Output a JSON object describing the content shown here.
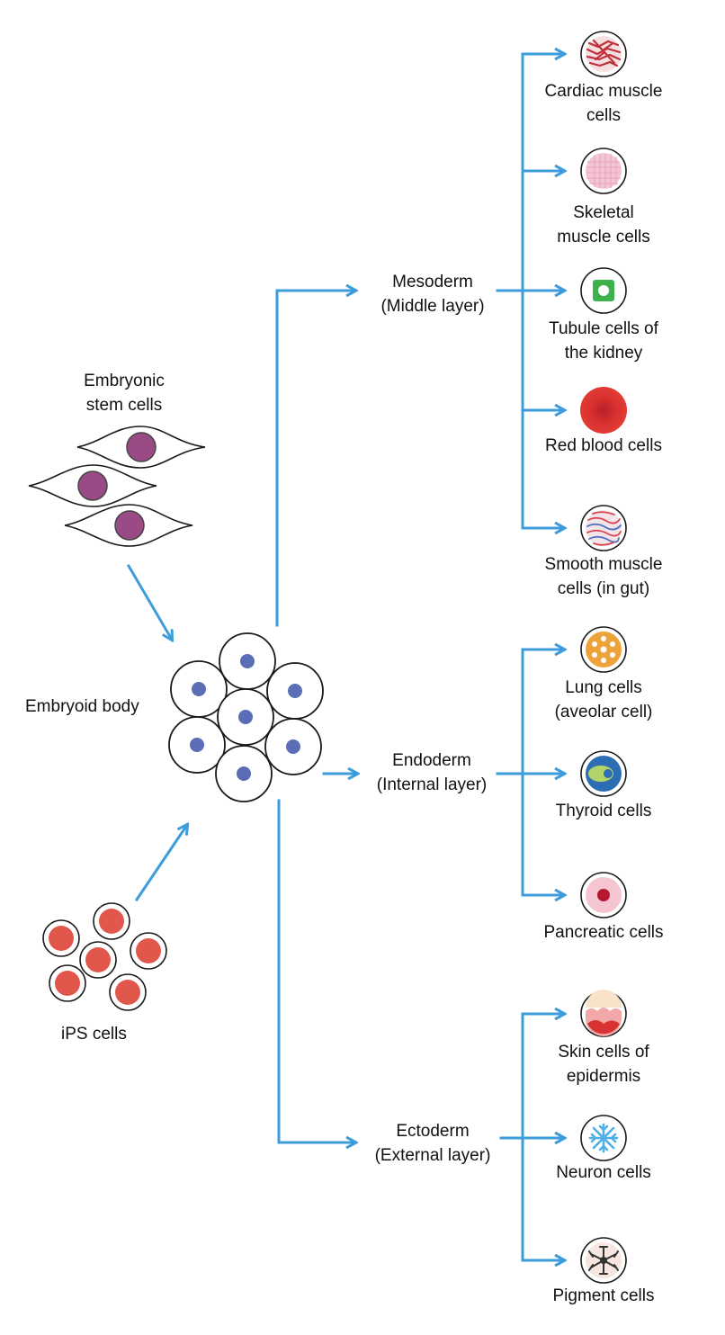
{
  "sources": {
    "embryonic": {
      "line1": "Embryonic",
      "line2": "stem cells"
    },
    "ips": {
      "line1": "iPS cells"
    }
  },
  "embryoid_body": {
    "label": "Embryoid body"
  },
  "germ_layers": {
    "mesoderm": {
      "line1": "Mesoderm",
      "line2": "(Middle layer)"
    },
    "endoderm": {
      "line1": "Endoderm",
      "line2": "(Internal layer)"
    },
    "ectoderm": {
      "line1": "Ectoderm",
      "line2": "(External layer)"
    }
  },
  "cell_types": {
    "cardiac": {
      "line1": "Cardiac muscle",
      "line2": "cells",
      "icon": "cardiac-muscle-icon"
    },
    "skeletal": {
      "line1": "Skeletal",
      "line2": "muscle cells",
      "icon": "skeletal-muscle-icon"
    },
    "kidney": {
      "line1": "Tubule cells of",
      "line2": "the kidney",
      "icon": "kidney-tubule-icon"
    },
    "rbc": {
      "line1": "Red blood cells",
      "line2": "",
      "icon": "red-blood-cell-icon"
    },
    "smooth": {
      "line1": "Smooth muscle",
      "line2": "cells (in gut)",
      "icon": "smooth-muscle-icon"
    },
    "lung": {
      "line1": "Lung cells",
      "line2": "(aveolar cell)",
      "icon": "lung-cell-icon"
    },
    "thyroid": {
      "line1": "Thyroid cells",
      "line2": "",
      "icon": "thyroid-cell-icon"
    },
    "pancreatic": {
      "line1": "Pancreatic cells",
      "line2": "",
      "icon": "pancreatic-cell-icon"
    },
    "skin": {
      "line1": "Skin cells of",
      "line2": "epidermis",
      "icon": "skin-cell-icon"
    },
    "neuron": {
      "line1": "Neuron cells",
      "line2": "",
      "icon": "neuron-cell-icon"
    },
    "pigment": {
      "line1": "Pigment cells",
      "line2": "",
      "icon": "pigment-cell-icon"
    }
  },
  "colors": {
    "arrow": "#3d9ddb",
    "stem_nucleus": "#9a4b86",
    "ips_cell": "#e2574c",
    "embryoid_nucleus": "#5a6db5",
    "outline": "#1a1a1a"
  }
}
